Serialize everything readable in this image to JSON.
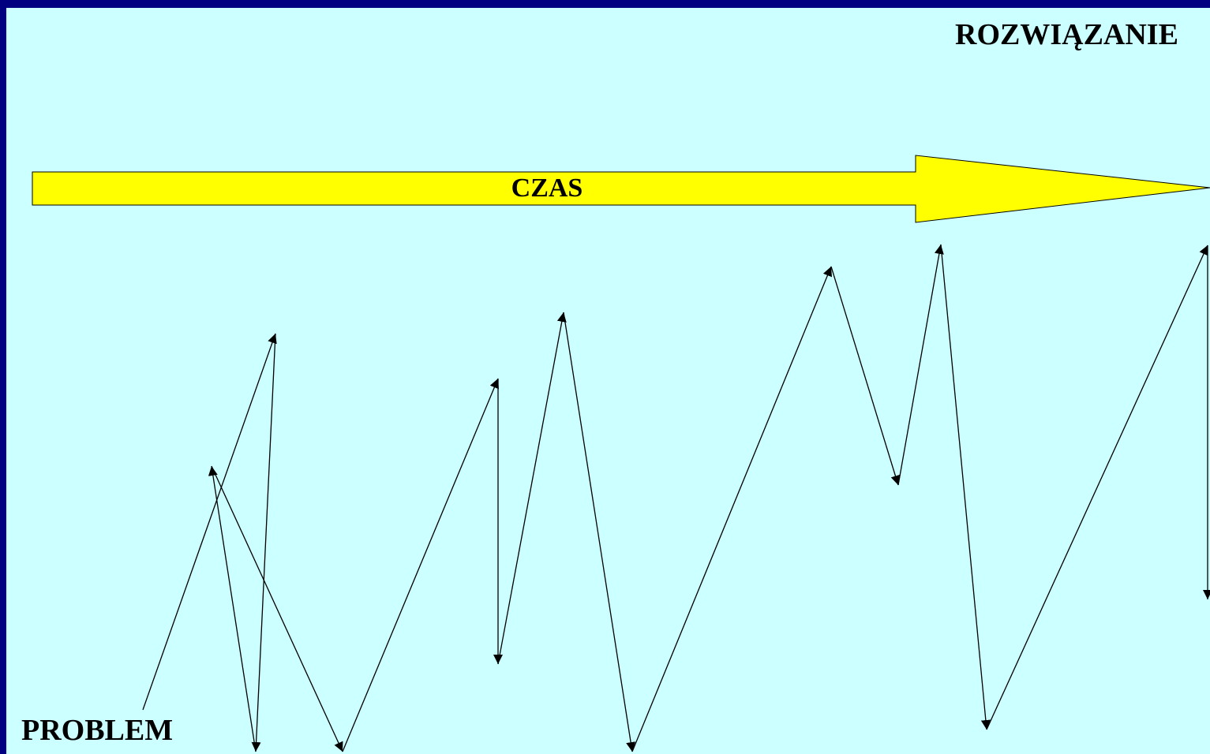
{
  "labels": {
    "solution": "ROZWIĄZANIE",
    "time": "CZAS",
    "problem": "PROBLEM"
  },
  "colors": {
    "frame": "#000080",
    "background": "#ccffff",
    "time_arrow_fill": "#ffff00",
    "stroke": "#000000"
  }
}
